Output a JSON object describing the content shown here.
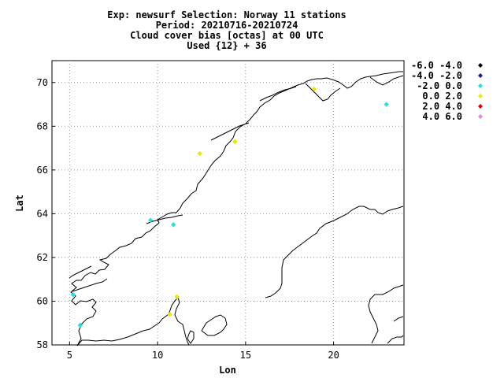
{
  "header": {
    "line1": "Exp: newsurf   Selection: Norway     11 stations",
    "line2": "Period: 20210716-20210724",
    "line3": "Cloud cover bias [octas] at  00 UTC",
    "line4": "Used {12} + 36"
  },
  "chart_data": {
    "type": "scatter",
    "title": "Cloud cover bias [octas] at  00 UTC",
    "xlabel": "Lon",
    "ylabel": "Lat",
    "xlim": [
      4,
      24
    ],
    "ylim": [
      58,
      71
    ],
    "xticks": [
      5,
      10,
      15,
      20
    ],
    "yticks": [
      58,
      60,
      62,
      64,
      66,
      68,
      70
    ],
    "grid": true,
    "legend_position": "right",
    "legend": [
      {
        "label": "-6.0 -4.0",
        "color": "#000000"
      },
      {
        "label": "-4.0 -2.0",
        "color": "#1a1a8c"
      },
      {
        "label": "-2.0 0.0",
        "color": "#22e0e0"
      },
      {
        "label": "0.0 2.0",
        "color": "#e8e800"
      },
      {
        "label": "2.0 4.0",
        "color": "#e00000"
      },
      {
        "label": "4.0 6.0",
        "color": "#e088e0"
      }
    ],
    "points": [
      {
        "lon": 18.9,
        "lat": 69.7,
        "bin": 3
      },
      {
        "lon": 23.0,
        "lat": 69.0,
        "bin": 2
      },
      {
        "lon": 14.4,
        "lat": 67.3,
        "bin": 3
      },
      {
        "lon": 12.4,
        "lat": 66.75,
        "bin": 3
      },
      {
        "lon": 9.6,
        "lat": 63.7,
        "bin": 2
      },
      {
        "lon": 10.9,
        "lat": 63.5,
        "bin": 2
      },
      {
        "lon": 5.2,
        "lat": 60.3,
        "bin": 2
      },
      {
        "lon": 11.1,
        "lat": 60.2,
        "bin": 3
      },
      {
        "lon": 10.7,
        "lat": 59.4,
        "bin": 3
      },
      {
        "lon": 5.6,
        "lat": 58.9,
        "bin": 2
      }
    ]
  }
}
